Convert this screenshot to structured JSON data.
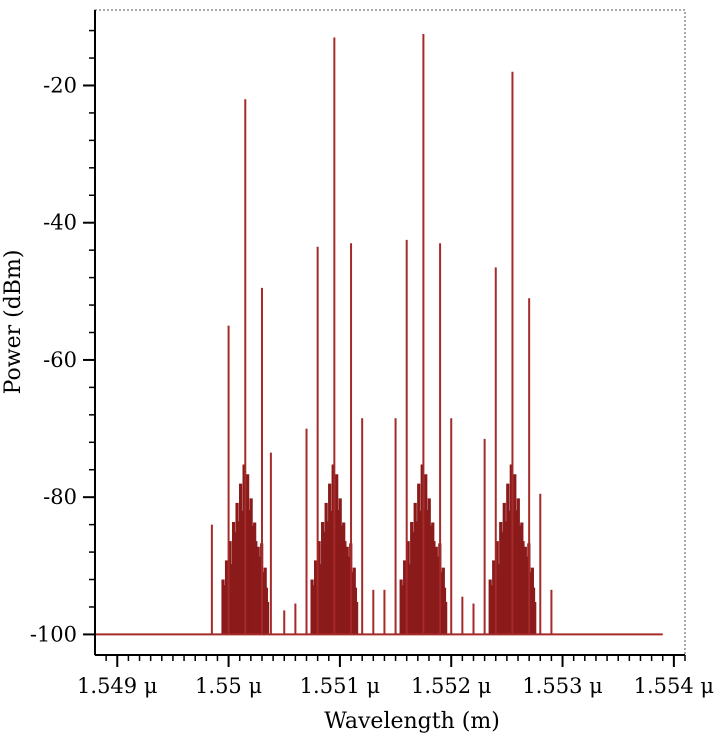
{
  "chart_data": {
    "type": "spectrum",
    "xlabel": "Wavelength (m)",
    "ylabel": "Power (dBm)",
    "xlim": [
      1.5488,
      1.5541
    ],
    "ylim": [
      -103,
      -9
    ],
    "x_ticks": [
      {
        "value": 1.549,
        "label": "1.549 μ"
      },
      {
        "value": 1.55,
        "label": "1.55 μ"
      },
      {
        "value": 1.551,
        "label": "1.551 μ"
      },
      {
        "value": 1.552,
        "label": "1.552 μ"
      },
      {
        "value": 1.553,
        "label": "1.553 μ"
      },
      {
        "value": 1.554,
        "label": "1.554 μ"
      }
    ],
    "y_ticks": [
      {
        "value": -20,
        "label": "-20"
      },
      {
        "value": -40,
        "label": "-40"
      },
      {
        "value": -60,
        "label": "-60"
      },
      {
        "value": -80,
        "label": "-80"
      },
      {
        "value": -100,
        "label": "-100"
      }
    ],
    "noise_floor": -100,
    "baseline_range": [
      1.5488,
      1.5539
    ],
    "color": "#a52a2a",
    "fill_color": "#8b1a1a",
    "lines": [
      {
        "x": 1.54985,
        "y": -84
      },
      {
        "x": 1.55,
        "y": -55
      },
      {
        "x": 1.55015,
        "y": -22
      },
      {
        "x": 1.5503,
        "y": -49.5
      },
      {
        "x": 1.55038,
        "y": -73.5
      },
      {
        "x": 1.5505,
        "y": -96.5
      },
      {
        "x": 1.5506,
        "y": -95.5
      },
      {
        "x": 1.5507,
        "y": -70
      },
      {
        "x": 1.5508,
        "y": -43.5
      },
      {
        "x": 1.55095,
        "y": -13
      },
      {
        "x": 1.5511,
        "y": -43
      },
      {
        "x": 1.5512,
        "y": -68.5
      },
      {
        "x": 1.5513,
        "y": -93.5
      },
      {
        "x": 1.5514,
        "y": -93.5
      },
      {
        "x": 1.5515,
        "y": -68.5
      },
      {
        "x": 1.5516,
        "y": -42.5
      },
      {
        "x": 1.55175,
        "y": -12.5
      },
      {
        "x": 1.5519,
        "y": -43
      },
      {
        "x": 1.552,
        "y": -68.5
      },
      {
        "x": 1.5521,
        "y": -94.5
      },
      {
        "x": 1.5522,
        "y": -95.5
      },
      {
        "x": 1.5523,
        "y": -71.5
      },
      {
        "x": 1.5524,
        "y": -46.5
      },
      {
        "x": 1.55255,
        "y": -18
      },
      {
        "x": 1.5527,
        "y": -51
      },
      {
        "x": 1.5528,
        "y": -79.5
      },
      {
        "x": 1.5529,
        "y": -93.5
      }
    ],
    "dense_regions": [
      {
        "x_start": 1.54995,
        "x_end": 1.55035,
        "center": 1.55015,
        "peak": -22,
        "floor": -99
      },
      {
        "x_start": 1.55075,
        "x_end": 1.55115,
        "center": 1.55095,
        "peak": -13,
        "floor": -99
      },
      {
        "x_start": 1.55155,
        "x_end": 1.55195,
        "center": 1.55175,
        "peak": -12.5,
        "floor": -99
      },
      {
        "x_start": 1.55235,
        "x_end": 1.55275,
        "center": 1.55255,
        "peak": -18,
        "floor": -99
      }
    ]
  }
}
